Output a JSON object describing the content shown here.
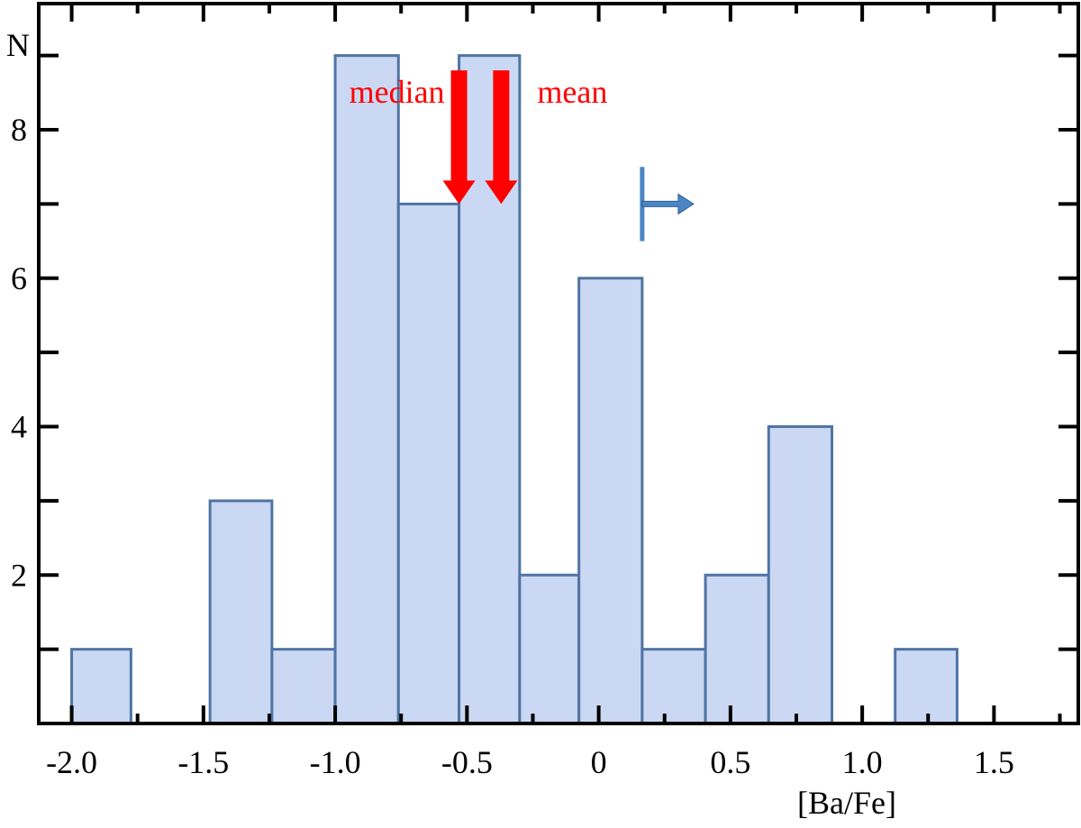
{
  "chart_data": {
    "type": "bar",
    "title": "",
    "xlabel": "[Ba/Fe]",
    "ylabel": "N",
    "xlim": [
      -2.125,
      1.82
    ],
    "ylim": [
      0,
      9.7
    ],
    "grid": false,
    "x_ticks": [
      {
        "value": -2.0,
        "label": "-2.0"
      },
      {
        "value": -1.5,
        "label": "-1.5"
      },
      {
        "value": -1.0,
        "label": "-1.0"
      },
      {
        "value": -0.5,
        "label": "-0.5"
      },
      {
        "value": 0.0,
        "label": "0"
      },
      {
        "value": 0.5,
        "label": "0.5"
      },
      {
        "value": 1.0,
        "label": "1.0"
      },
      {
        "value": 1.5,
        "label": "1.5"
      }
    ],
    "y_major_ticks": [
      {
        "value": 2,
        "label": "2"
      },
      {
        "value": 4,
        "label": "4"
      },
      {
        "value": 6,
        "label": "6"
      },
      {
        "value": 8,
        "label": "8"
      }
    ],
    "y_minor_ticks": [
      1,
      3,
      5,
      7,
      9
    ],
    "x_minor_ticks": [
      -1.75,
      -1.25,
      -0.75,
      -0.25,
      0.25,
      0.75,
      1.25,
      1.75
    ],
    "bins": [
      {
        "x0": -2.0,
        "x1": -1.775,
        "count": 1
      },
      {
        "x0": -1.475,
        "x1": -1.24,
        "count": 3
      },
      {
        "x0": -1.24,
        "x1": -1.0,
        "count": 1
      },
      {
        "x0": -1.0,
        "x1": -0.76,
        "count": 9
      },
      {
        "x0": -0.76,
        "x1": -0.53,
        "count": 7
      },
      {
        "x0": -0.53,
        "x1": -0.3,
        "count": 9
      },
      {
        "x0": -0.3,
        "x1": -0.075,
        "count": 2
      },
      {
        "x0": -0.075,
        "x1": 0.165,
        "count": 6
      },
      {
        "x0": 0.165,
        "x1": 0.405,
        "count": 1
      },
      {
        "x0": 0.405,
        "x1": 0.645,
        "count": 2
      },
      {
        "x0": 0.645,
        "x1": 0.885,
        "count": 4
      },
      {
        "x0": 1.125,
        "x1": 1.36,
        "count": 1
      }
    ],
    "markers": [
      {
        "label": "median",
        "x": -0.53,
        "y_top": 8.8,
        "y_tip": 7.0,
        "label_side": "left"
      },
      {
        "label": "mean",
        "x": -0.37,
        "y_top": 8.8,
        "y_tip": 7.0,
        "label_side": "right"
      }
    ],
    "limit_marker": {
      "x": 0.165,
      "y": 7.0,
      "y_span": [
        6.5,
        7.5
      ],
      "x_arrow_end": 0.36,
      "direction": "right"
    },
    "colors": {
      "bar_fill": "#cbd8f3",
      "bar_stroke": "#4f75a2",
      "marker": "#ff0000",
      "limit": "#4a86c5",
      "axis": "#000000"
    }
  }
}
